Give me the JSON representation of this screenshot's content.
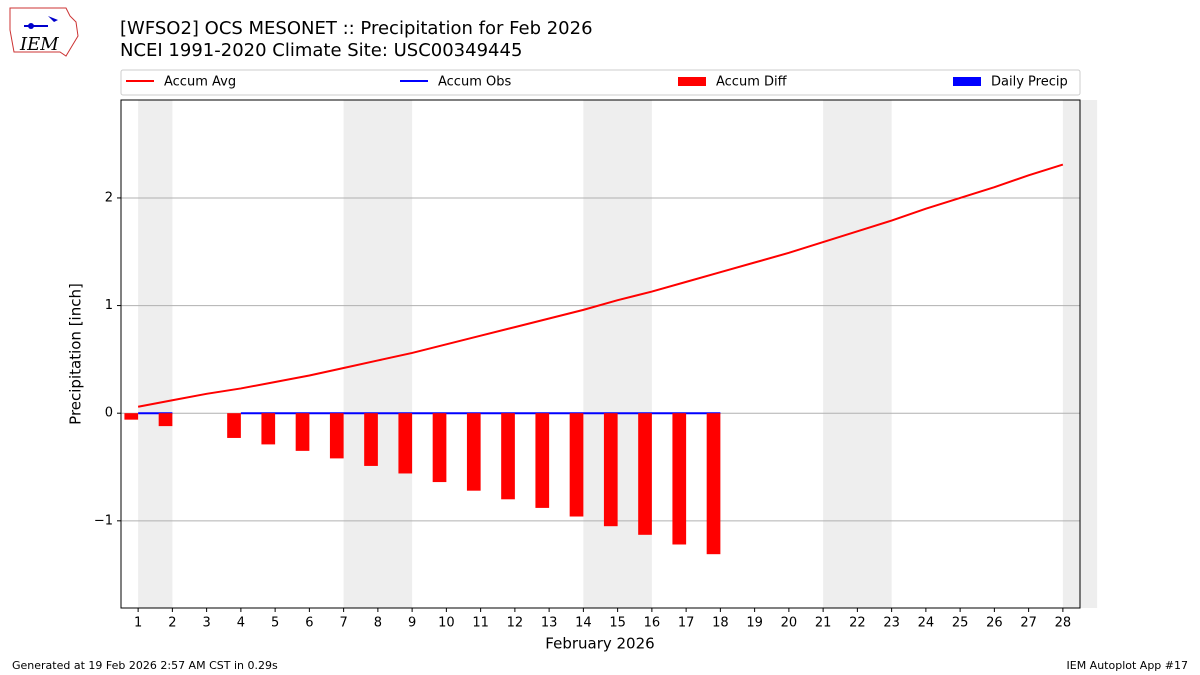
{
  "chart_data": {
    "type": "combo",
    "title": "[WFSO2] OCS MESONET :: Precipitation for Feb 2026",
    "subtitle": "NCEI 1991-2020 Climate Site: USC00349445",
    "x_label": "February 2026",
    "y_label": "Precipitation [inch]",
    "categories": [
      "1",
      "2",
      "3",
      "4",
      "5",
      "6",
      "7",
      "8",
      "9",
      "10",
      "11",
      "12",
      "13",
      "14",
      "15",
      "16",
      "17",
      "18",
      "19",
      "20",
      "21",
      "22",
      "23",
      "24",
      "25",
      "26",
      "27",
      "28"
    ],
    "ylim": [
      -1.81,
      2.91
    ],
    "yticks": [
      {
        "value": -1,
        "label": "−1"
      },
      0,
      1,
      2
    ],
    "grid": true,
    "shaded_spans": [
      [
        0.5,
        1.5
      ],
      [
        6.5,
        8.5
      ],
      [
        13.5,
        15.5
      ],
      [
        20.5,
        22.5
      ],
      [
        27.5,
        28.5
      ]
    ],
    "series": [
      {
        "name": "Accum Avg",
        "kind": "line",
        "color": "#ff0000",
        "values": [
          0.06,
          0.12,
          0.18,
          0.23,
          0.29,
          0.35,
          0.42,
          0.49,
          0.56,
          0.64,
          0.72,
          0.8,
          0.88,
          0.96,
          1.05,
          1.13,
          1.22,
          1.31,
          1.4,
          1.49,
          1.59,
          1.69,
          1.79,
          1.9,
          2.0,
          2.1,
          2.21,
          2.31
        ]
      },
      {
        "name": "Accum Obs",
        "kind": "line",
        "color": "#0000ff",
        "values": [
          0,
          0,
          null,
          0,
          0,
          0,
          0,
          0,
          0,
          0,
          0,
          0,
          0,
          0,
          0,
          0,
          0,
          0,
          null,
          null,
          null,
          null,
          null,
          null,
          null,
          null,
          null,
          null
        ]
      },
      {
        "name": "Accum Diff",
        "kind": "bar",
        "color": "#ff0000",
        "values": [
          -0.06,
          -0.12,
          null,
          -0.23,
          -0.29,
          -0.35,
          -0.42,
          -0.49,
          -0.56,
          -0.64,
          -0.72,
          -0.8,
          -0.88,
          -0.96,
          -1.05,
          -1.13,
          -1.22,
          -1.31,
          null,
          null,
          null,
          null,
          null,
          null,
          null,
          null,
          null,
          null
        ]
      },
      {
        "name": "Daily Precip",
        "kind": "bar",
        "color": "#0000ff",
        "values": [
          0,
          0,
          null,
          0,
          0,
          0,
          0,
          0,
          0,
          0,
          0,
          0,
          0,
          0,
          0,
          0,
          0,
          0,
          null,
          null,
          null,
          null,
          null,
          null,
          null,
          null,
          null,
          null
        ]
      }
    ],
    "footer_left": "Generated at 19 Feb 2026 2:57 AM CST in 0.29s",
    "footer_right": "IEM Autoplot App #17",
    "logo_text": "IEM"
  }
}
